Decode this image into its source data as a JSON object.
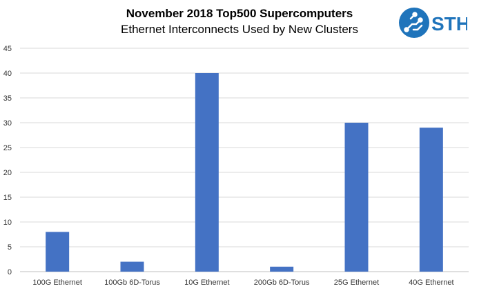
{
  "chart_data": {
    "type": "bar",
    "title": "November 2018 Top500 Supercomputers",
    "subtitle": "Ethernet Interconnects Used by New Clusters",
    "categories": [
      "100G Ethernet",
      "100Gb 6D-Torus",
      "10G Ethernet",
      "200Gb 6D-Torus",
      "25G Ethernet",
      "40G Ethernet"
    ],
    "values": [
      8,
      2,
      40,
      1,
      30,
      29
    ],
    "ylim": [
      0,
      45
    ],
    "yticks": [
      0,
      5,
      10,
      15,
      20,
      25,
      30,
      35,
      40,
      45
    ],
    "grid": true,
    "legend": "none",
    "bar_color": "#4472C4"
  },
  "logo": {
    "text": "STH",
    "color": "#1f74bb"
  }
}
